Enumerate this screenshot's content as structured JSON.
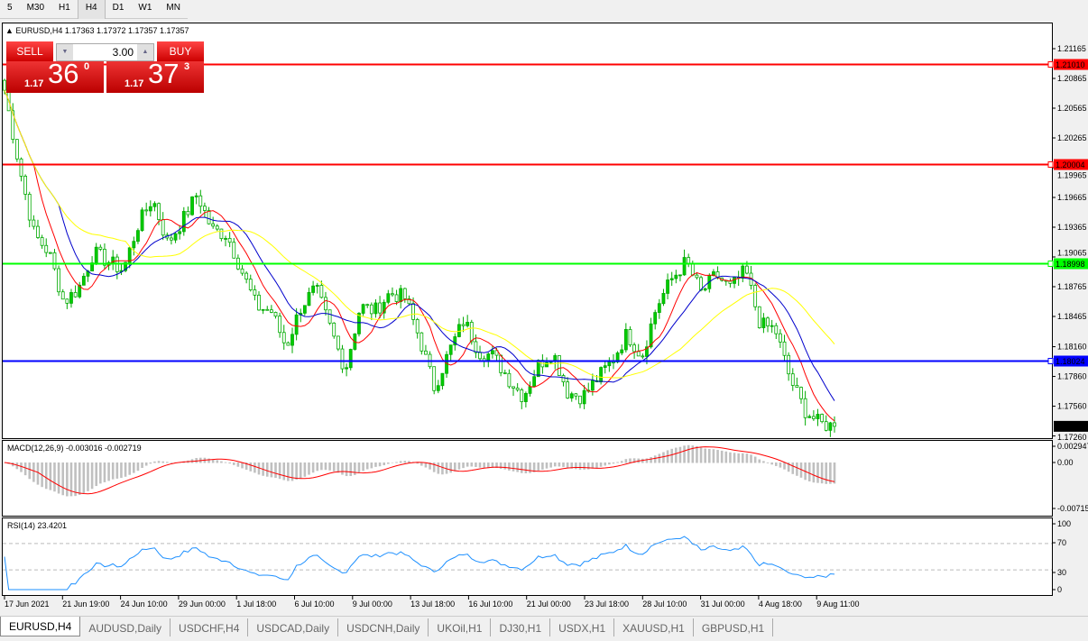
{
  "timeframes": [
    {
      "label": "5"
    },
    {
      "label": "M30"
    },
    {
      "label": "H1"
    },
    {
      "label": "H4",
      "active": true
    },
    {
      "label": "D1"
    },
    {
      "label": "W1"
    },
    {
      "label": "MN"
    }
  ],
  "symbol_info": "EURUSD,H4  1.17363 1.17372 1.17357 1.17357",
  "trade_panel": {
    "sell_label": "SELL",
    "buy_label": "BUY",
    "lot": "3.00",
    "sell_small": "1.17",
    "sell_big": "36",
    "sell_exp": "0",
    "buy_small": "1.17",
    "buy_big": "37",
    "buy_exp": "3"
  },
  "chart_data": [
    {
      "type": "candlestick",
      "symbol": "EURUSD",
      "timeframe": "H4",
      "ylim": [
        1.1722,
        1.2135
      ],
      "y_ticks": [
        "1.21165",
        "1.20865",
        "1.20565",
        "1.20265",
        "1.19965",
        "1.19665",
        "1.19365",
        "1.19065",
        "1.18765",
        "1.18465",
        "1.18160",
        "1.17860",
        "1.17560",
        "1.17260"
      ],
      "x_ticks": [
        "17 Jun 2021",
        "21 Jun 19:00",
        "24 Jun 10:00",
        "29 Jun 00:00",
        "1 Jul 18:00",
        "6 Jul 10:00",
        "9 Jul 00:00",
        "13 Jul 18:00",
        "16 Jul 10:00",
        "21 Jul 00:00",
        "23 Jul 18:00",
        "28 Jul 10:00",
        "31 Jul 00:00",
        "4 Aug 18:00",
        "9 Aug 11:00"
      ],
      "approx_closes": [
        1.20747,
        1.19974,
        1.19292,
        1.1911,
        1.1861,
        1.18747,
        1.1911,
        1.1902,
        1.18929,
        1.19383,
        1.19656,
        1.19201,
        1.19429,
        1.19701,
        1.19338,
        1.19292,
        1.18929,
        1.18565,
        1.1852,
        1.18156,
        1.18565,
        1.18747,
        1.18338,
        1.17929,
        1.18565,
        1.1852,
        1.18701,
        1.18656,
        1.18247,
        1.17747,
        1.1811,
        1.18429,
        1.1811,
        1.18065,
        1.17838,
        1.17656,
        1.17974,
        1.1811,
        1.17701,
        1.17656,
        1.17838,
        1.1802,
        1.18292,
        1.18065,
        1.18565,
        1.18838,
        1.1902,
        1.18701,
        1.18883,
        1.18747,
        1.18929,
        1.18383,
        1.18338,
        1.17838,
        1.1752,
        1.17383,
        1.17357
      ],
      "horizontal_lines": [
        {
          "price": "1.21010",
          "color": "#ff0000"
        },
        {
          "price": "1.20004",
          "color": "#ff0000"
        },
        {
          "price": "1.18998",
          "color": "#00ff00"
        },
        {
          "price": "1.18024",
          "color": "#0000ff"
        }
      ],
      "current_price": "1.17357",
      "moving_averages": [
        {
          "color": "#ff0000"
        },
        {
          "color": "#0000cc"
        },
        {
          "color": "#ffff00"
        }
      ],
      "bull_color": "#00aa00",
      "bear_color": "#00aa00"
    },
    {
      "type": "histogram+line",
      "title": "MACD(12,26,9) -0.003016 -0.002719",
      "y_ticks": [
        "0.002947",
        "0.00",
        "-0.00715"
      ],
      "ylim": [
        -0.0079,
        0.0035
      ],
      "signal_color": "#ff0000",
      "hist_color": "#c0c0c0"
    },
    {
      "type": "line",
      "title": "RSI(14) 23.4201",
      "y_ticks": [
        "100",
        "70",
        "30",
        "0"
      ],
      "levels": [
        70,
        30
      ],
      "ylim": [
        0,
        100
      ],
      "color": "#1e90ff"
    }
  ],
  "tabs": [
    {
      "label": "EURUSD,H4",
      "active": true
    },
    {
      "label": "AUDUSD,Daily"
    },
    {
      "label": "USDCHF,H4"
    },
    {
      "label": "USDCAD,Daily"
    },
    {
      "label": "USDCNH,Daily"
    },
    {
      "label": "UKOil,H1"
    },
    {
      "label": "DJ30,H1"
    },
    {
      "label": "USDX,H1"
    },
    {
      "label": "XAUUSD,H1"
    },
    {
      "label": "GBPUSD,H1"
    }
  ]
}
